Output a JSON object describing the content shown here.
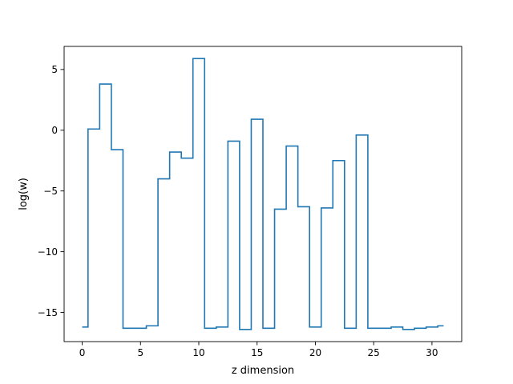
{
  "chart_data": {
    "type": "line",
    "drawstyle": "steps-mid",
    "title": "",
    "xlabel": "z dimension",
    "ylabel": "log(w)",
    "xlim": [
      -1.55,
      32.55
    ],
    "ylim": [
      -17.4,
      6.9
    ],
    "xticks": [
      0,
      5,
      10,
      15,
      20,
      25,
      30
    ],
    "yticks": [
      -15,
      -10,
      -5,
      0,
      5
    ],
    "xtick_labels": [
      "0",
      "5",
      "10",
      "15",
      "20",
      "25",
      "30"
    ],
    "ytick_labels": [
      "−15",
      "−10",
      "−5",
      "0",
      "5"
    ],
    "grid": false,
    "color": "#1f77b4",
    "x": [
      0,
      1,
      2,
      3,
      4,
      5,
      6,
      7,
      8,
      9,
      10,
      11,
      12,
      13,
      14,
      15,
      16,
      17,
      18,
      19,
      20,
      21,
      22,
      23,
      24,
      25,
      26,
      27,
      28,
      29,
      30,
      31
    ],
    "y": [
      -16.2,
      0.1,
      3.8,
      -1.6,
      -16.3,
      -16.3,
      -16.1,
      -4.0,
      -1.8,
      -2.3,
      5.9,
      -16.3,
      -16.2,
      -0.9,
      -16.4,
      0.9,
      -16.3,
      -6.5,
      -1.3,
      -6.3,
      -16.2,
      -6.4,
      -2.5,
      -16.3,
      -0.4,
      -16.3,
      -16.3,
      -16.2,
      -16.4,
      -16.3,
      -16.2,
      -16.1
    ]
  }
}
